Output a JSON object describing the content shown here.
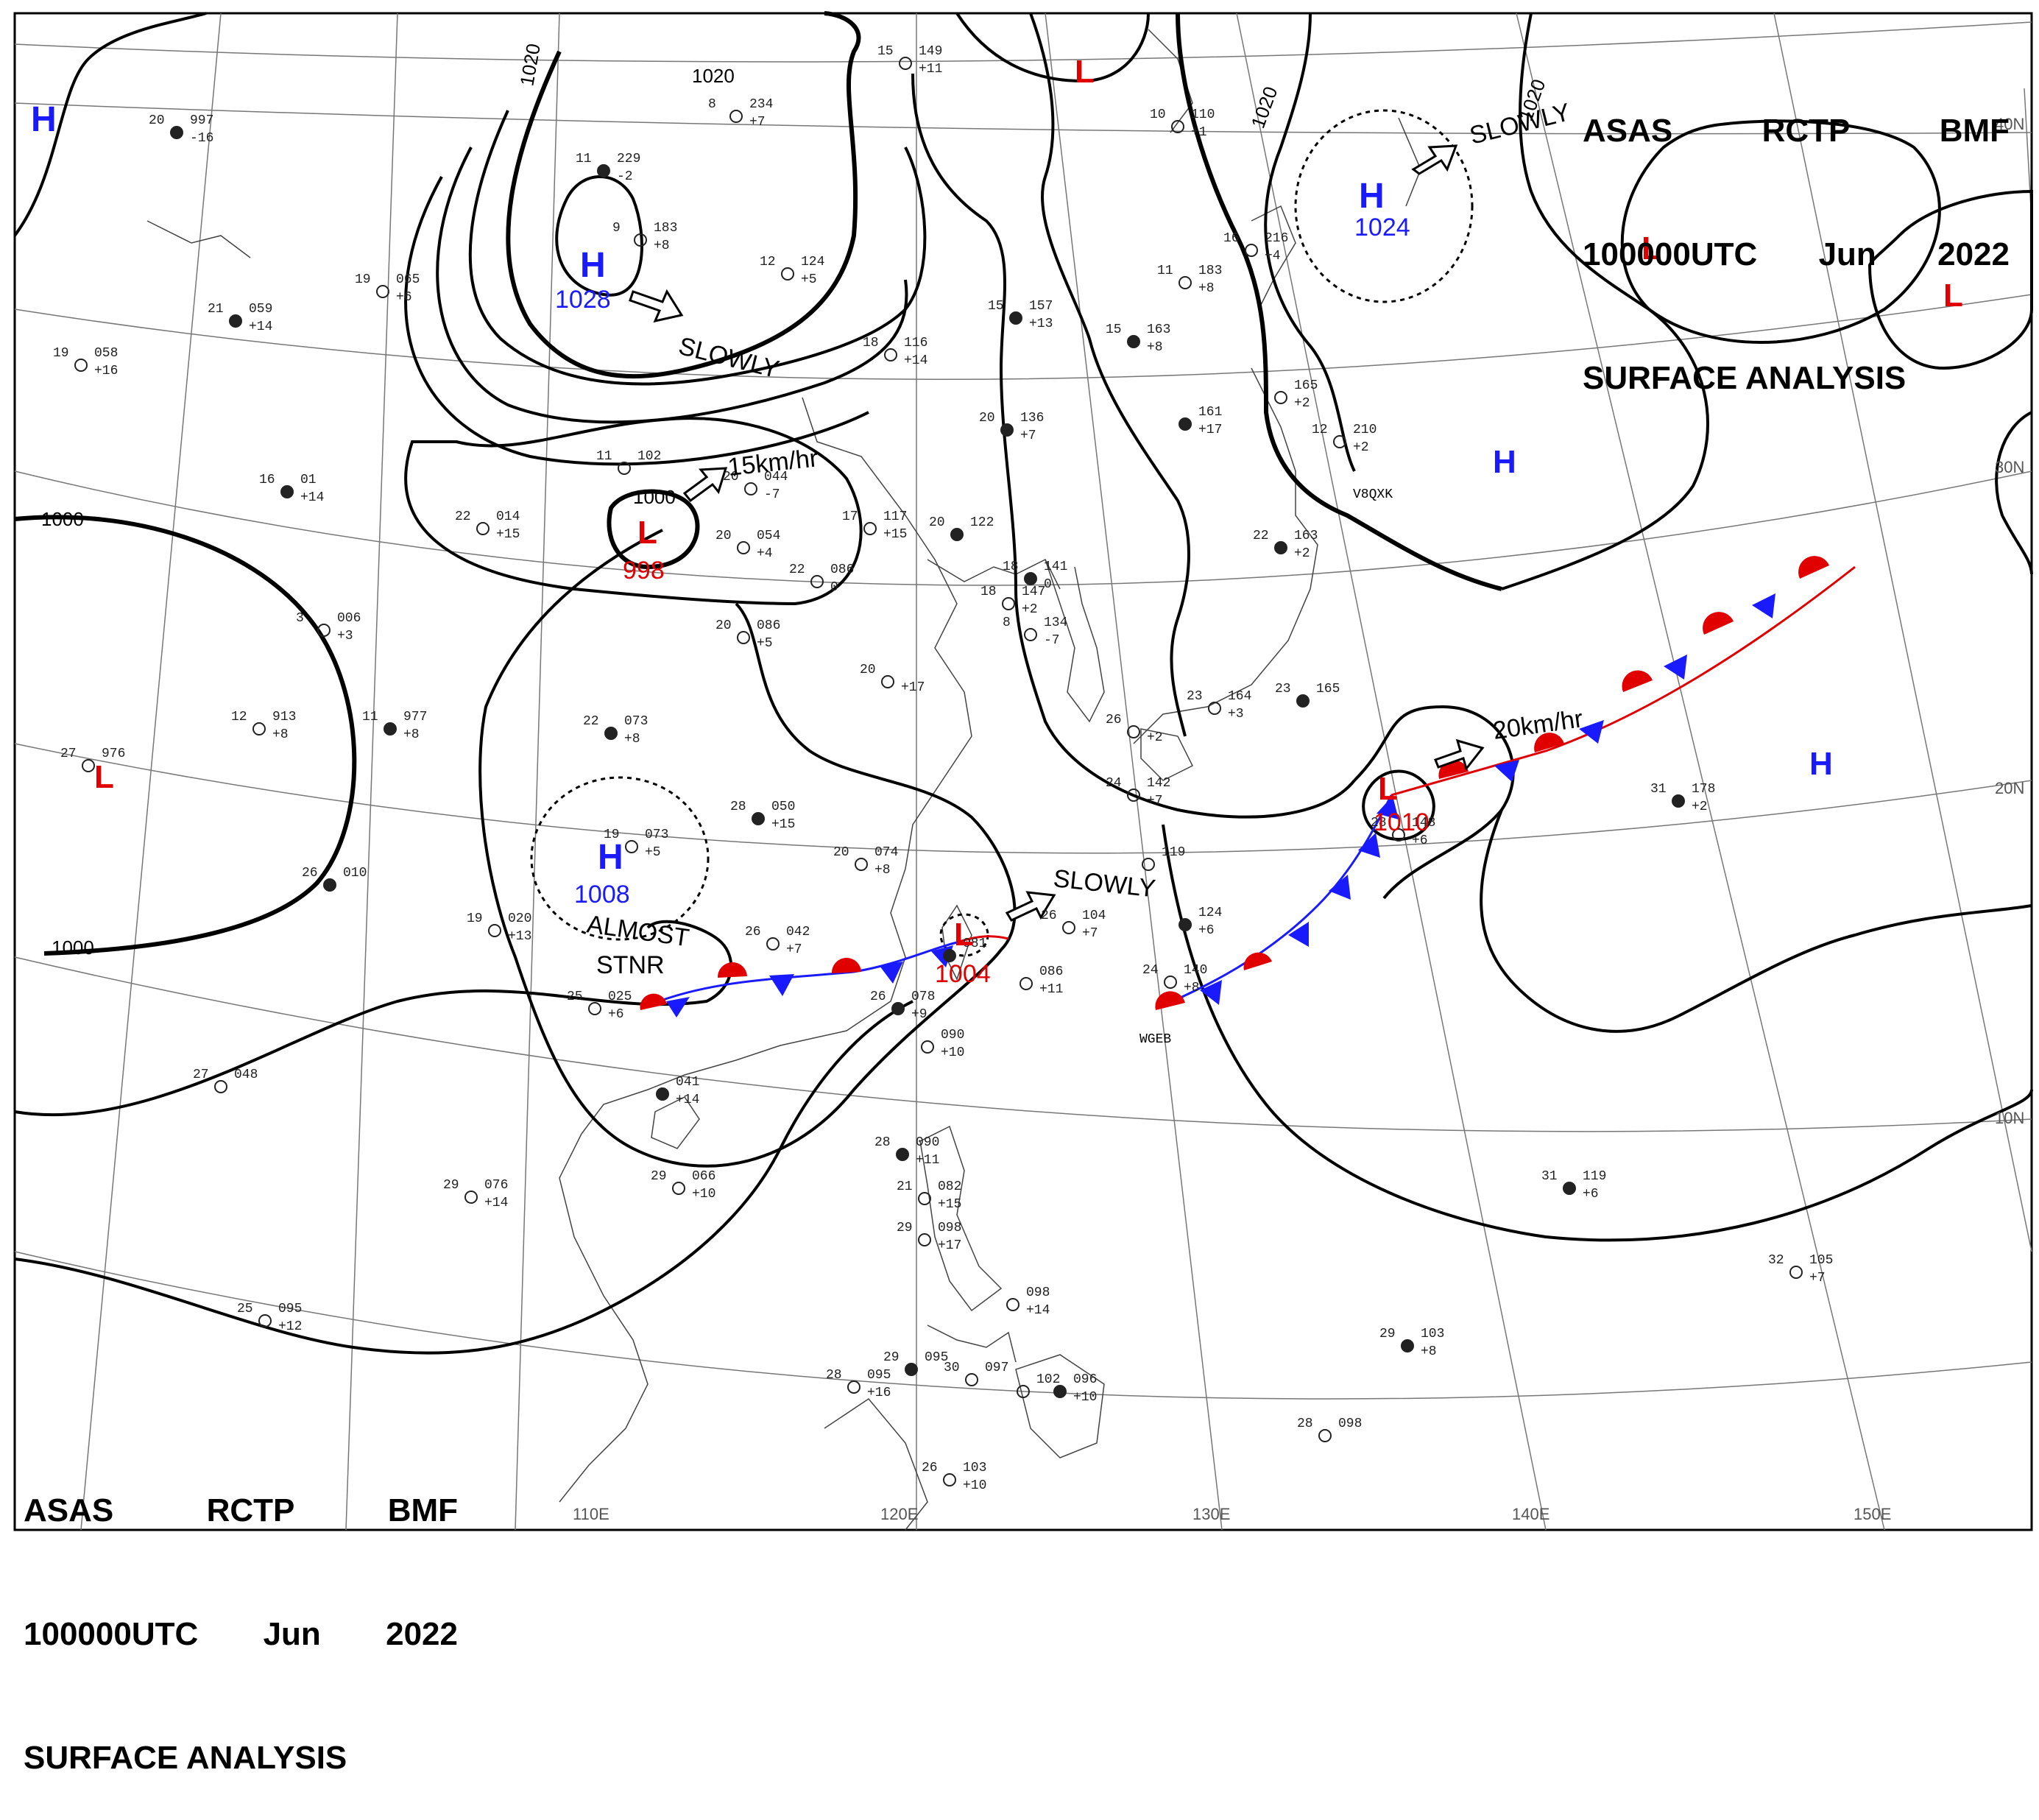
{
  "title": {
    "line1": [
      "ASAS",
      "RCTP",
      "BMF"
    ],
    "line2": [
      "100000UTC",
      "Jun",
      "2022"
    ],
    "line3": "SURFACE ANALYSIS"
  },
  "colors": {
    "high": "#1a1aff",
    "low": "#e00000",
    "isobar": "#000000",
    "cold_front": "#1a1aff",
    "warm_front": "#e00000"
  },
  "pressure_centers": [
    {
      "type": "H",
      "value": ""
    },
    {
      "type": "H",
      "value": "1028"
    },
    {
      "type": "L",
      "value": ""
    },
    {
      "type": "H",
      "value": "1024"
    },
    {
      "type": "L",
      "value": ""
    },
    {
      "type": "L",
      "value": ""
    },
    {
      "type": "H",
      "value": ""
    },
    {
      "type": "L",
      "value": "998"
    },
    {
      "type": "L",
      "value": ""
    },
    {
      "type": "H",
      "value": "1008"
    },
    {
      "type": "L",
      "value": "1004"
    },
    {
      "type": "L",
      "value": "1010"
    },
    {
      "type": "H",
      "value": ""
    }
  ],
  "isobar_labels": [
    "1020",
    "1020",
    "1020",
    "1000",
    "1000",
    "1000",
    "1020"
  ],
  "motion_labels": [
    "SLOWLY",
    "SLOWLY",
    "15km/hr",
    "SLOWLY",
    "20km/hr",
    "ALMOST",
    "STNR"
  ],
  "longitude_labels": [
    "110E",
    "120E",
    "130E",
    "140E",
    "150E"
  ],
  "latitude_labels": [
    "40N",
    "30N",
    "20N",
    "10N"
  ],
  "ship_ids": [
    "WGEB",
    "V8QXK"
  ],
  "station_plots": [
    {
      "t": "20",
      "p": "997",
      "dp": "-16"
    },
    {
      "t": "15",
      "p": "149",
      "dp": "+11"
    },
    {
      "t": "8",
      "p": "234",
      "dp": "+7"
    },
    {
      "t": "11",
      "p": "229",
      "dp": "-2"
    },
    {
      "t": "9",
      "p": "183",
      "dp": "+8"
    },
    {
      "t": "19",
      "p": "065",
      "dp": "+6"
    },
    {
      "t": "21",
      "p": "059",
      "dp": "+14"
    },
    {
      "t": "19",
      "p": "058",
      "dp": "+16"
    },
    {
      "t": "12",
      "p": "124",
      "dp": "+5"
    },
    {
      "t": "15",
      "p": "157",
      "dp": "+13"
    },
    {
      "t": "18",
      "p": "116",
      "dp": "+14"
    },
    {
      "t": "11",
      "p": "183",
      "dp": "+8"
    },
    {
      "t": "15",
      "p": "163",
      "dp": "+8"
    },
    {
      "t": "16",
      "p": "216",
      "dp": "+4"
    },
    {
      "t": "10",
      "p": "110",
      "dp": "+1"
    },
    {
      "t": "",
      "p": "161",
      "dp": "+17"
    },
    {
      "t": "",
      "p": "165",
      "dp": "+2"
    },
    {
      "t": "12",
      "p": "210",
      "dp": "+2"
    },
    {
      "t": "20",
      "p": "136",
      "dp": "+7"
    },
    {
      "t": "11",
      "p": "102",
      "dp": ""
    },
    {
      "t": "20",
      "p": "044",
      "dp": "-7"
    },
    {
      "t": "16",
      "p": "01",
      "dp": "+14"
    },
    {
      "t": "22",
      "p": "014",
      "dp": "+15"
    },
    {
      "t": "17",
      "p": "117",
      "dp": "+15"
    },
    {
      "t": "20",
      "p": "122",
      "dp": ""
    },
    {
      "t": "20",
      "p": "054",
      "dp": "+4"
    },
    {
      "t": "22",
      "p": "086",
      "dp": "0"
    },
    {
      "t": "18",
      "p": "141",
      "dp": "0"
    },
    {
      "t": "18",
      "p": "147",
      "dp": "+2"
    },
    {
      "t": "8",
      "p": "134",
      "dp": "-7"
    },
    {
      "t": "22",
      "p": "163",
      "dp": "+2"
    },
    {
      "t": "20",
      "p": "086",
      "dp": "+5"
    },
    {
      "t": "3",
      "p": "006",
      "dp": "+3"
    },
    {
      "t": "11",
      "p": "977",
      "dp": "+8"
    },
    {
      "t": "12",
      "p": "913",
      "dp": "+8"
    },
    {
      "t": "27",
      "p": "976",
      "dp": ""
    },
    {
      "t": "22",
      "p": "073",
      "dp": "+8"
    },
    {
      "t": "20",
      "p": "",
      "dp": "+17"
    },
    {
      "t": "23",
      "p": "164",
      "dp": "+3"
    },
    {
      "t": "23",
      "p": "165",
      "dp": ""
    },
    {
      "t": "26",
      "p": "",
      "dp": "+2"
    },
    {
      "t": "24",
      "p": "142",
      "dp": "+7"
    },
    {
      "t": "28",
      "p": "050",
      "dp": "+15"
    },
    {
      "t": "19",
      "p": "073",
      "dp": "+5"
    },
    {
      "t": "20",
      "p": "074",
      "dp": "+8"
    },
    {
      "t": "26",
      "p": "010",
      "dp": ""
    },
    {
      "t": "19",
      "p": "020",
      "dp": "+13"
    },
    {
      "t": "26",
      "p": "042",
      "dp": "+7"
    },
    {
      "t": "",
      "p": "081",
      "dp": ""
    },
    {
      "t": "",
      "p": "119",
      "dp": ""
    },
    {
      "t": "26",
      "p": "104",
      "dp": "+7"
    },
    {
      "t": "",
      "p": "124",
      "dp": "+6"
    },
    {
      "t": "24",
      "p": "140",
      "dp": "+8"
    },
    {
      "t": "28",
      "p": "148",
      "dp": "+6"
    },
    {
      "t": "31",
      "p": "178",
      "dp": "+2"
    },
    {
      "t": "25",
      "p": "025",
      "dp": "+6"
    },
    {
      "t": "",
      "p": "086",
      "dp": "+11"
    },
    {
      "t": "26",
      "p": "078",
      "dp": "+9"
    },
    {
      "t": "",
      "p": "090",
      "dp": "+10"
    },
    {
      "t": "27",
      "p": "048",
      "dp": ""
    },
    {
      "t": "",
      "p": "041",
      "dp": "+14"
    },
    {
      "t": "29",
      "p": "066",
      "dp": "+10"
    },
    {
      "t": "29",
      "p": "076",
      "dp": "+14"
    },
    {
      "t": "28",
      "p": "090",
      "dp": "+11"
    },
    {
      "t": "21",
      "p": "082",
      "dp": "+15"
    },
    {
      "t": "29",
      "p": "098",
      "dp": "+17"
    },
    {
      "t": "31",
      "p": "119",
      "dp": "+6"
    },
    {
      "t": "",
      "p": "098",
      "dp": "+14"
    },
    {
      "t": "25",
      "p": "095",
      "dp": "+12"
    },
    {
      "t": "29",
      "p": "103",
      "dp": "+8"
    },
    {
      "t": "32",
      "p": "105",
      "dp": "+7"
    },
    {
      "t": "28",
      "p": "095",
      "dp": "+16"
    },
    {
      "t": "29",
      "p": "095",
      "dp": ""
    },
    {
      "t": "30",
      "p": "097",
      "dp": ""
    },
    {
      "t": "",
      "p": "102",
      "dp": ""
    },
    {
      "t": "",
      "p": "096",
      "dp": "+10"
    },
    {
      "t": "28",
      "p": "098",
      "dp": ""
    },
    {
      "t": "26",
      "p": "103",
      "dp": "+10"
    }
  ]
}
